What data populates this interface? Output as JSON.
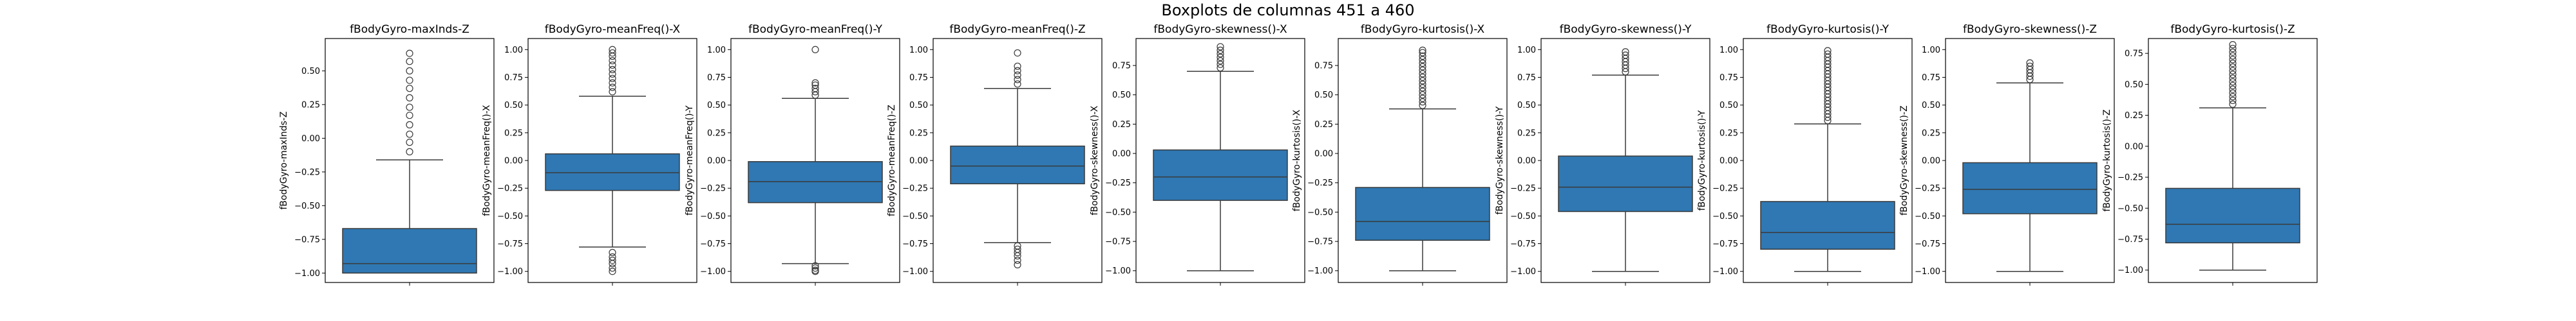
{
  "figure_title": "Boxplots de columnas 451 a 460",
  "colors": {
    "box_fill": "#2f78b3",
    "line": "#3a3a3a",
    "frame": "#000000",
    "flier_edge": "#3a3a3a"
  },
  "chart_data": [
    {
      "type": "box",
      "title": "fBodyGyro-maxInds-Z",
      "ylabel": "fBodyGyro-maxInds-Z",
      "ylim": [
        -1.07,
        0.74
      ],
      "yticks": [
        -1.0,
        -0.75,
        -0.5,
        -0.25,
        0.0,
        0.25,
        0.5
      ],
      "tick_labels": [
        "−1.00",
        "−0.75",
        "−0.50",
        "−0.25",
        "0.00",
        "0.25",
        "0.50"
      ],
      "whisker_low": -1.0,
      "q1": -1.0,
      "median": -0.93,
      "q3": -0.67,
      "whisker_high": -0.16,
      "outliers": [
        -0.1,
        -0.03,
        0.03,
        0.1,
        0.17,
        0.23,
        0.3,
        0.37,
        0.43,
        0.5,
        0.57,
        0.63
      ]
    },
    {
      "type": "box",
      "title": "fBodyGyro-meanFreq()-X",
      "ylabel": "fBodyGyro-meanFreq()-X",
      "ylim": [
        -1.1,
        1.1
      ],
      "yticks": [
        -1.0,
        -0.75,
        -0.5,
        -0.25,
        0.0,
        0.25,
        0.5,
        0.75,
        1.0
      ],
      "tick_labels": [
        "−1.00",
        "−0.75",
        "−0.50",
        "−0.25",
        "0.00",
        "0.25",
        "0.50",
        "0.75",
        "1.00"
      ],
      "whisker_low": -0.78,
      "q1": -0.27,
      "median": -0.11,
      "q3": 0.06,
      "whisker_high": 0.58,
      "outliers": [
        -0.83,
        -0.87,
        -0.9,
        -0.93,
        -0.97,
        -1.0,
        0.62,
        0.66,
        0.7,
        0.74,
        0.78,
        0.82,
        0.86,
        0.9,
        0.94,
        0.97,
        1.0
      ]
    },
    {
      "type": "box",
      "title": "fBodyGyro-meanFreq()-Y",
      "ylabel": "fBodyGyro-meanFreq()-Y",
      "ylim": [
        -1.1,
        1.1
      ],
      "yticks": [
        -1.0,
        -0.75,
        -0.5,
        -0.25,
        0.0,
        0.25,
        0.5,
        0.75,
        1.0
      ],
      "tick_labels": [
        "−1.00",
        "−0.75",
        "−0.50",
        "−0.25",
        "0.00",
        "0.25",
        "0.50",
        "0.75",
        "1.00"
      ],
      "whisker_low": -0.93,
      "q1": -0.38,
      "median": -0.19,
      "q3": -0.01,
      "whisker_high": 0.56,
      "outliers": [
        -0.95,
        -0.97,
        -0.99,
        -1.0,
        0.59,
        0.62,
        0.65,
        0.68,
        0.7,
        1.0
      ]
    },
    {
      "type": "box",
      "title": "fBodyGyro-meanFreq()-Z",
      "ylabel": "fBodyGyro-meanFreq()-Z",
      "ylim": [
        -1.1,
        1.1
      ],
      "yticks": [
        -1.0,
        -0.75,
        -0.5,
        -0.25,
        0.0,
        0.25,
        0.5,
        0.75,
        1.0
      ],
      "tick_labels": [
        "−1.00",
        "−0.75",
        "−0.50",
        "−0.25",
        "0.00",
        "0.25",
        "0.50",
        "0.75",
        "1.00"
      ],
      "whisker_low": -0.74,
      "q1": -0.21,
      "median": -0.05,
      "q3": 0.13,
      "whisker_high": 0.65,
      "outliers": [
        -0.77,
        -0.8,
        -0.83,
        -0.86,
        -0.9,
        -0.94,
        0.69,
        0.73,
        0.77,
        0.81,
        0.85,
        0.97
      ]
    },
    {
      "type": "box",
      "title": "fBodyGyro-skewness()-X",
      "ylabel": "fBodyGyro-skewness()-X",
      "ylim": [
        -1.1,
        0.98
      ],
      "yticks": [
        -1.0,
        -0.75,
        -0.5,
        -0.25,
        0.0,
        0.25,
        0.5,
        0.75
      ],
      "tick_labels": [
        "−1.00",
        "−0.75",
        "−0.50",
        "−0.25",
        "0.00",
        "0.25",
        "0.50",
        "0.75"
      ],
      "whisker_low": -1.0,
      "q1": -0.4,
      "median": -0.2,
      "q3": 0.03,
      "whisker_high": 0.7,
      "outliers": [
        0.73,
        0.76,
        0.79,
        0.82,
        0.85,
        0.88,
        0.91
      ]
    },
    {
      "type": "box",
      "title": "fBodyGyro-kurtosis()-X",
      "ylabel": "fBodyGyro-kurtosis()-X",
      "ylim": [
        -1.1,
        0.98
      ],
      "yticks": [
        -1.0,
        -0.75,
        -0.5,
        -0.25,
        0.0,
        0.25,
        0.5,
        0.75
      ],
      "tick_labels": [
        "−1.00",
        "−0.75",
        "−0.50",
        "−0.25",
        "0.00",
        "0.25",
        "0.50",
        "0.75"
      ],
      "whisker_low": -1.0,
      "q1": -0.74,
      "median": -0.58,
      "q3": -0.29,
      "whisker_high": 0.38,
      "outliers": [
        0.41,
        0.44,
        0.47,
        0.5,
        0.53,
        0.56,
        0.59,
        0.62,
        0.65,
        0.68,
        0.71,
        0.74,
        0.77,
        0.8,
        0.83,
        0.86,
        0.88
      ]
    },
    {
      "type": "box",
      "title": "fBodyGyro-skewness()-Y",
      "ylabel": "fBodyGyro-skewness()-Y",
      "ylim": [
        -1.1,
        1.1
      ],
      "yticks": [
        -1.0,
        -0.75,
        -0.5,
        -0.25,
        0.0,
        0.25,
        0.5,
        0.75,
        1.0
      ],
      "tick_labels": [
        "−1.00",
        "−0.75",
        "−0.50",
        "−0.25",
        "0.00",
        "0.25",
        "0.50",
        "0.75",
        "1.00"
      ],
      "whisker_low": -1.0,
      "q1": -0.46,
      "median": -0.24,
      "q3": 0.04,
      "whisker_high": 0.77,
      "outliers": [
        0.8,
        0.83,
        0.86,
        0.89,
        0.92,
        0.95,
        0.98
      ]
    },
    {
      "type": "box",
      "title": "fBodyGyro-kurtosis()-Y",
      "ylabel": "fBodyGyro-kurtosis()-Y",
      "ylim": [
        -1.1,
        1.1
      ],
      "yticks": [
        -1.0,
        -0.75,
        -0.5,
        -0.25,
        0.0,
        0.25,
        0.5,
        0.75,
        1.0
      ],
      "tick_labels": [
        "−1.00",
        "−0.75",
        "−0.50",
        "−0.25",
        "0.00",
        "0.25",
        "0.50",
        "0.75",
        "1.00"
      ],
      "whisker_low": -1.0,
      "q1": -0.8,
      "median": -0.65,
      "q3": -0.37,
      "whisker_high": 0.33,
      "outliers": [
        0.36,
        0.39,
        0.42,
        0.45,
        0.48,
        0.51,
        0.54,
        0.57,
        0.6,
        0.63,
        0.66,
        0.69,
        0.72,
        0.75,
        0.78,
        0.81,
        0.84,
        0.87,
        0.9,
        0.93,
        0.96,
        0.99
      ]
    },
    {
      "type": "box",
      "title": "fBodyGyro-skewness()-Z",
      "ylabel": "fBodyGyro-skewness()-Z",
      "ylim": [
        -1.1,
        1.1
      ],
      "yticks": [
        -1.0,
        -0.75,
        -0.5,
        -0.25,
        0.0,
        0.25,
        0.5,
        0.75,
        1.0
      ],
      "tick_labels": [
        "−1.00",
        "−0.75",
        "−0.50",
        "−0.25",
        "0.00",
        "0.25",
        "0.50",
        "0.75",
        "1.00"
      ],
      "whisker_low": -1.0,
      "q1": -0.48,
      "median": -0.26,
      "q3": -0.02,
      "whisker_high": 0.7,
      "outliers": [
        0.73,
        0.76,
        0.79,
        0.82,
        0.85,
        0.88
      ]
    },
    {
      "type": "box",
      "title": "fBodyGyro-kurtosis()-Z",
      "ylabel": "fBodyGyro-kurtosis()-Z",
      "ylim": [
        -1.1,
        0.87
      ],
      "yticks": [
        -1.0,
        -0.75,
        -0.5,
        -0.25,
        0.0,
        0.25,
        0.5,
        0.75
      ],
      "tick_labels": [
        "−1.00",
        "−0.75",
        "−0.50",
        "−0.25",
        "0.00",
        "0.25",
        "0.50",
        "0.75"
      ],
      "whisker_low": -1.0,
      "q1": -0.78,
      "median": -0.63,
      "q3": -0.34,
      "whisker_high": 0.31,
      "outliers": [
        0.34,
        0.37,
        0.4,
        0.43,
        0.46,
        0.49,
        0.52,
        0.55,
        0.58,
        0.61,
        0.64,
        0.67,
        0.7,
        0.73,
        0.76,
        0.79,
        0.82
      ]
    }
  ]
}
